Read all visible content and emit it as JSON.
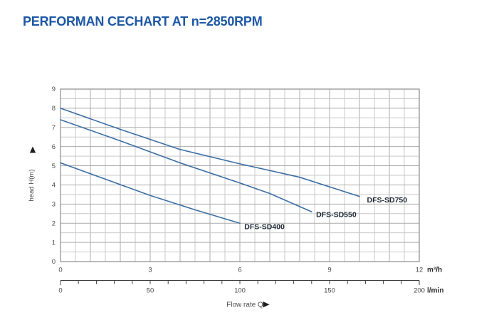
{
  "colors": {
    "title": "#1c57a5",
    "curve": "#3a6ea5",
    "grid_minor": "#c9c9c9",
    "grid_major": "#ababab",
    "plot_border": "#8d8d8d",
    "tick_text": "#4d4d4d",
    "unit_text": "#2b2b2b",
    "series_label_text": "#1c2734",
    "axis_line": "#3d3d3d",
    "arrow": "#1e1e1e"
  },
  "chart_data": {
    "type": "line",
    "title": "PERFORMAN CECHART AT n=2850RPM",
    "xlabel": "Flow rate Q",
    "ylabel": "head H(m)",
    "grid": "on",
    "legend_position": "inline-curve-labels",
    "y_axis": {
      "min": 0,
      "max": 9,
      "labeled_ticks": [
        0,
        1,
        2,
        3,
        4,
        5,
        6,
        7,
        8,
        9
      ],
      "minor_step": 0.5
    },
    "x_axis_primary": {
      "unit": "m³/h",
      "min": 0,
      "max": 12,
      "labeled_ticks": [
        0,
        3,
        6,
        9,
        12
      ],
      "minor_step": 0.5
    },
    "x_axis_secondary": {
      "unit": "l/min",
      "min": 0,
      "max": 200,
      "labeled_ticks": [
        0,
        50,
        100,
        150,
        200
      ],
      "tick_step": 10
    },
    "series": [
      {
        "name": "DFS-SD750",
        "points": [
          [
            0,
            8.0
          ],
          [
            2,
            6.9
          ],
          [
            4,
            5.85
          ],
          [
            6,
            5.1
          ],
          [
            8,
            4.4
          ],
          [
            10,
            3.4
          ]
        ],
        "label_anchor": [
          10.25,
          3.22
        ]
      },
      {
        "name": "DFS-SD550",
        "points": [
          [
            0,
            7.4
          ],
          [
            2,
            6.3
          ],
          [
            4,
            5.15
          ],
          [
            6,
            4.1
          ],
          [
            7,
            3.55
          ],
          [
            8.4,
            2.6
          ]
        ],
        "label_anchor": [
          8.55,
          2.45
        ]
      },
      {
        "name": "DFS-SD400",
        "points": [
          [
            0,
            5.15
          ],
          [
            1.5,
            4.3
          ],
          [
            3,
            3.45
          ],
          [
            4.5,
            2.7
          ],
          [
            6,
            2.0
          ]
        ],
        "label_anchor": [
          6.15,
          1.83
        ]
      }
    ]
  }
}
